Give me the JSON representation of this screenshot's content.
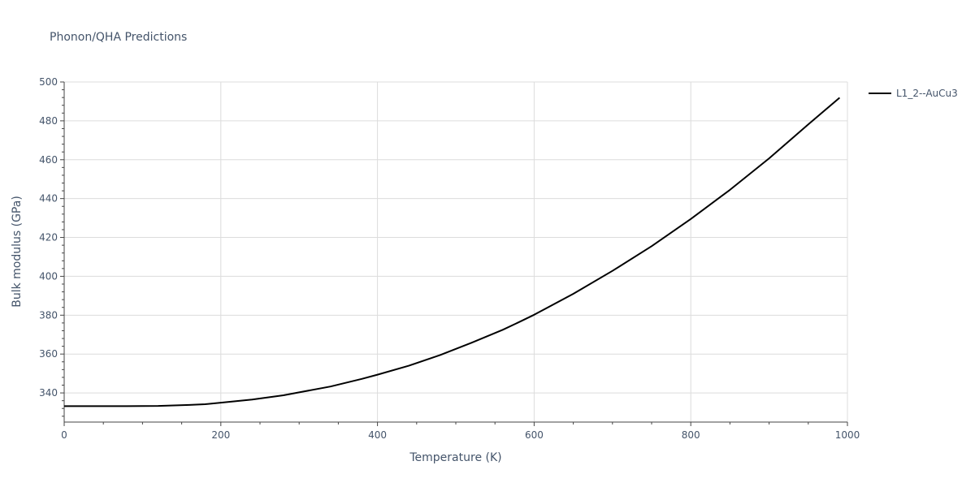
{
  "chart_data": {
    "type": "line",
    "title": "Phonon/QHA Predictions",
    "xlabel": "Temperature (K)",
    "ylabel": "Bulk modulus (GPa)",
    "xlim": [
      0,
      1000
    ],
    "ylim": [
      325,
      500
    ],
    "x_ticks": [
      0,
      200,
      400,
      600,
      800,
      1000
    ],
    "y_ticks": [
      340,
      360,
      380,
      400,
      420,
      440,
      460,
      480,
      500
    ],
    "grid": true,
    "legend_position": "top-right",
    "series": [
      {
        "name": "L1_2--AuCu3",
        "color": "#000000",
        "x": [
          0,
          40,
          80,
          120,
          160,
          180,
          200,
          240,
          280,
          300,
          340,
          380,
          400,
          440,
          480,
          520,
          560,
          580,
          600,
          650,
          700,
          750,
          800,
          850,
          900,
          950,
          990
        ],
        "y": [
          333.2,
          333.2,
          333.2,
          333.3,
          333.8,
          334.2,
          335.0,
          336.6,
          338.8,
          340.3,
          343.3,
          347.2,
          349.4,
          354.0,
          359.5,
          365.8,
          372.5,
          376.3,
          380.2,
          391.0,
          402.8,
          415.5,
          429.5,
          444.5,
          460.7,
          478.2,
          491.9
        ]
      }
    ]
  }
}
